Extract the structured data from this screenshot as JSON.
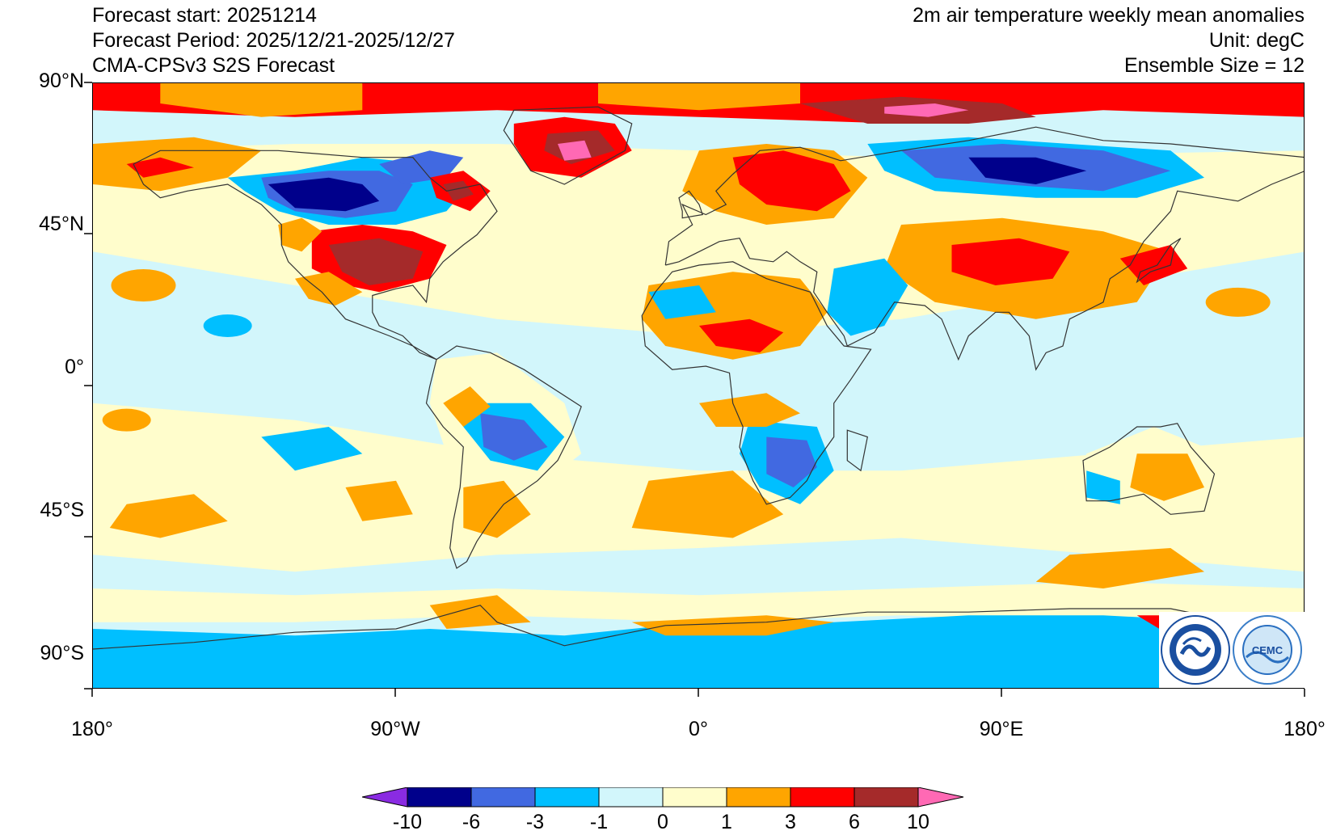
{
  "header": {
    "left": [
      "Forecast start: 20251214",
      "Forecast Period: 2025/12/21-2025/12/27",
      "CMA-CPSv3 S2S Forecast"
    ],
    "right": [
      "2m air temperature weekly mean anomalies",
      "Unit: degC",
      "Ensemble Size = 12"
    ]
  },
  "axes": {
    "lat_labels": [
      "90°N",
      "45°N",
      "0°",
      "45°S",
      "90°S"
    ],
    "lon_labels": [
      "180°",
      "90°W",
      "0°",
      "90°E",
      "180°"
    ]
  },
  "colorbar": {
    "levels": [
      "-10",
      "-6",
      "-3",
      "-1",
      "0",
      "1",
      "3",
      "6",
      "10"
    ],
    "colors": [
      "#8a2be2",
      "#00008b",
      "#4169e1",
      "#00bfff",
      "#d2f6fb",
      "#fffdcc",
      "#ffa500",
      "#ff0000",
      "#a52a2a",
      "#ff69b4"
    ]
  },
  "logos": {
    "left": "cma-logo-icon",
    "right": "cemc-logo-icon"
  }
}
